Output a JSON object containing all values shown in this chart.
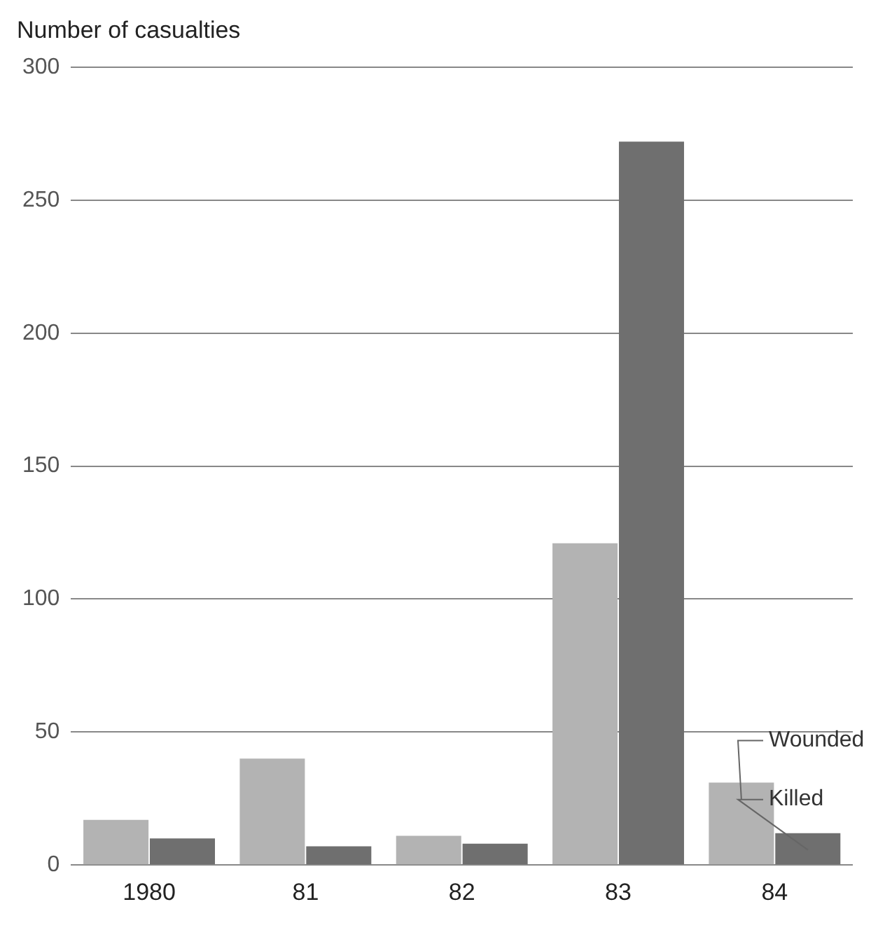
{
  "chart_data": {
    "type": "bar",
    "ylabel": "Number of casualties",
    "categories": [
      "1980",
      "81",
      "82",
      "83",
      "84"
    ],
    "series": [
      {
        "name": "Wounded",
        "color": "#b3b3b3",
        "values": [
          17,
          40,
          11,
          121,
          31
        ]
      },
      {
        "name": "Killed",
        "color": "#6f6f6f",
        "values": [
          10,
          7,
          8,
          272,
          12
        ]
      }
    ],
    "ylim": [
      0,
      300
    ],
    "yticks": [
      0,
      50,
      100,
      150,
      200,
      250,
      300
    ],
    "grid": "y",
    "legend": "right"
  }
}
